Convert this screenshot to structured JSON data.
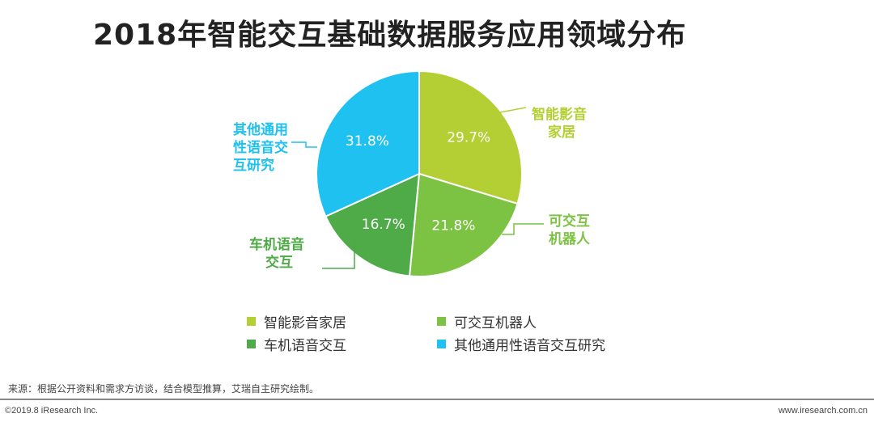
{
  "title": "2018年智能交互基础数据服务应用领域分布",
  "chart_data": {
    "type": "pie",
    "title": "2018年智能交互基础数据服务应用领域分布",
    "slices": [
      {
        "name": "智能影音家居",
        "label_lines": [
          "智能影音",
          "家居"
        ],
        "value": 29.7,
        "value_label": "29.7%",
        "color": "#b3cf33"
      },
      {
        "name": "可交互机器人",
        "label_lines": [
          "可交互",
          "机器人"
        ],
        "value": 21.8,
        "value_label": "21.8%",
        "color": "#7cc243"
      },
      {
        "name": "车机语音交互",
        "label_lines": [
          "车机语音",
          "交互"
        ],
        "value": 16.7,
        "value_label": "16.7%",
        "color": "#4faa48"
      },
      {
        "name": "其他通用性语音交互研究",
        "label_lines": [
          "其他通用",
          "性语音交",
          "互研究"
        ],
        "value": 31.8,
        "value_label": "31.8%",
        "color": "#1ec1ef"
      }
    ],
    "legend": [
      "智能影音家居",
      "可交互机器人",
      "车机语音交互",
      "其他通用性语音交互研究"
    ],
    "legend_position": "bottom"
  },
  "footer": {
    "source": "来源：根据公开资料和需求方访谈，结合模型推算，艾瑞自主研究绘制。",
    "copyright": "©2019.8 iResearch Inc.",
    "website": "www.iresearch.com.cn"
  }
}
